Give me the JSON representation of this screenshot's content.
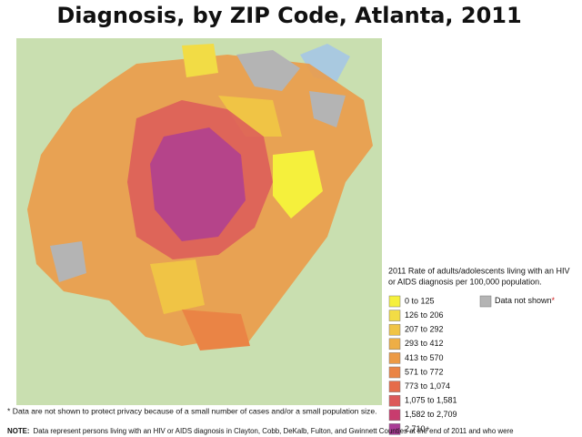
{
  "header": {
    "title": "Diagnosis, by ZIP Code, Atlanta, 2011"
  },
  "legend": {
    "title_lines": [
      "2011 Rate of adults/adolescents living with an HIV",
      "or AIDS diagnosis per 100,000 population."
    ],
    "items": [
      {
        "label": "0 to 125",
        "color": "#f5f03c"
      },
      {
        "label": "126 to 206",
        "color": "#f2dc45"
      },
      {
        "label": "207 to 292",
        "color": "#f0c445"
      },
      {
        "label": "293 to 412",
        "color": "#eeae45"
      },
      {
        "label": "413 to 570",
        "color": "#ec9a45"
      },
      {
        "label": "571 to 772",
        "color": "#ea8445"
      },
      {
        "label": "773 to 1,074",
        "color": "#e66c4a"
      },
      {
        "label": "1,075 to 1,581",
        "color": "#dc5a5a"
      },
      {
        "label": "1,582 to 2,709",
        "color": "#c83c6e"
      },
      {
        "label": "2,710+",
        "color": "#aa3c96"
      }
    ],
    "not_shown": {
      "label": "Data not shown",
      "mark": "*",
      "color": "#b4b4b4"
    }
  },
  "footnote": "* Data are not shown to protect privacy because of a small number of cases and/or a small population size.",
  "note": {
    "lead": "NOTE:",
    "text": "Data represent persons living with an HIV or AIDS diagnosis in Clayton, Cobb, DeKalb, Fulton, and Gwinnett Counties at the end of 2011 and who were"
  }
}
